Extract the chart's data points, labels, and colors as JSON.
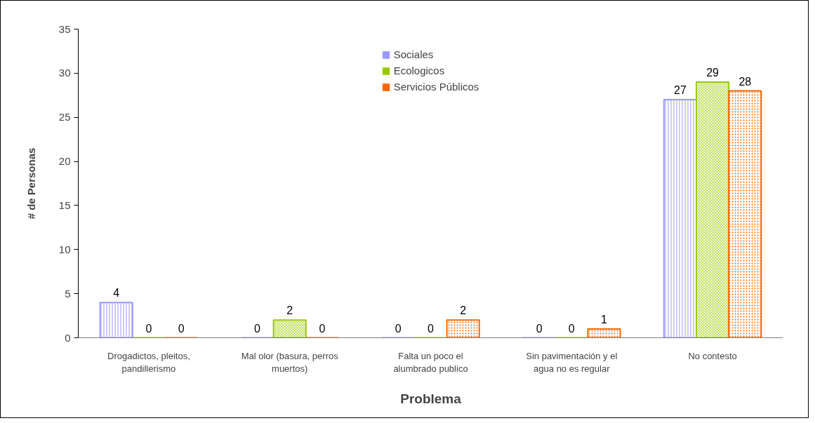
{
  "chart_data": {
    "type": "bar",
    "xlabel": "Problema",
    "ylabel": "# de Personas",
    "categories": [
      "Drogadictos, pleitos, pandillerismo",
      "Mal olor (basura, perros muertos)",
      "Falta un poco el alumbrado publico",
      "Sin pavimentación y el agua no es regular",
      "No contesto"
    ],
    "series": [
      {
        "name": "Sociales",
        "color": "#9999ff",
        "values": [
          4,
          0,
          0,
          0,
          27
        ]
      },
      {
        "name": "Ecologicos",
        "color": "#99cc00",
        "values": [
          0,
          2,
          0,
          0,
          29
        ]
      },
      {
        "name": "Servicios Públicos",
        "color": "#ff6600",
        "values": [
          0,
          0,
          2,
          1,
          28
        ]
      }
    ],
    "ylim": [
      0,
      35
    ],
    "yticks": [
      0,
      5,
      10,
      15,
      20,
      25,
      30,
      35
    ],
    "data_labels": true,
    "legend": "top",
    "grid": false
  }
}
